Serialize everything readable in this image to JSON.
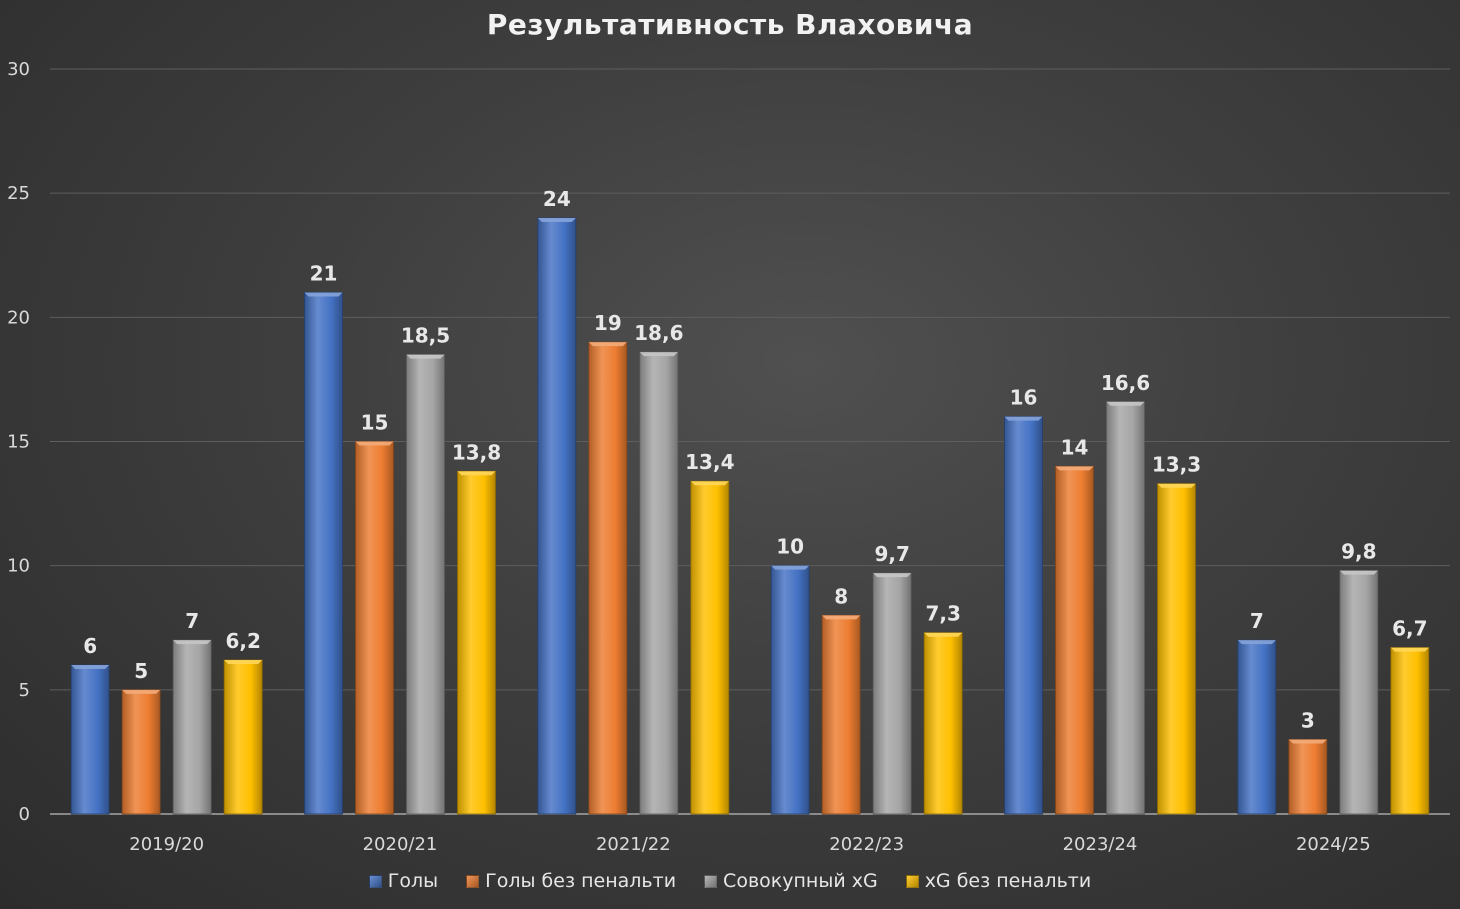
{
  "chart_data": {
    "type": "bar",
    "title": "Результативность Влаховича",
    "xlabel": "",
    "ylabel": "",
    "ylim": [
      0,
      30
    ],
    "yticks": [
      0,
      5,
      10,
      15,
      20,
      25,
      30
    ],
    "grid": true,
    "legend_position": "bottom",
    "categories": [
      "2019/20",
      "2020/21",
      "2021/22",
      "2022/23",
      "2023/24",
      "2024/25"
    ],
    "series": [
      {
        "name": "Голы",
        "color": "#4472c4",
        "values": [
          6,
          21,
          24,
          10,
          16,
          7
        ],
        "labels": [
          "6",
          "21",
          "24",
          "10",
          "16",
          "7"
        ]
      },
      {
        "name": "Голы без пенальти",
        "color": "#ed7d31",
        "values": [
          5,
          15,
          19,
          8,
          14,
          3
        ],
        "labels": [
          "5",
          "15",
          "19",
          "8",
          "14",
          "3"
        ]
      },
      {
        "name": "Совокупный xG",
        "color": "#a5a5a5",
        "values": [
          7,
          18.5,
          18.6,
          9.7,
          16.6,
          9.8
        ],
        "labels": [
          "7",
          "18,5",
          "18,6",
          "9,7",
          "16,6",
          "9,8"
        ]
      },
      {
        "name": "xG без пенальти",
        "color": "#ffc000",
        "values": [
          6.2,
          13.8,
          13.4,
          7.3,
          13.3,
          6.7
        ],
        "labels": [
          "6,2",
          "13,8",
          "13,4",
          "7,3",
          "13,3",
          "6,7"
        ]
      }
    ]
  }
}
